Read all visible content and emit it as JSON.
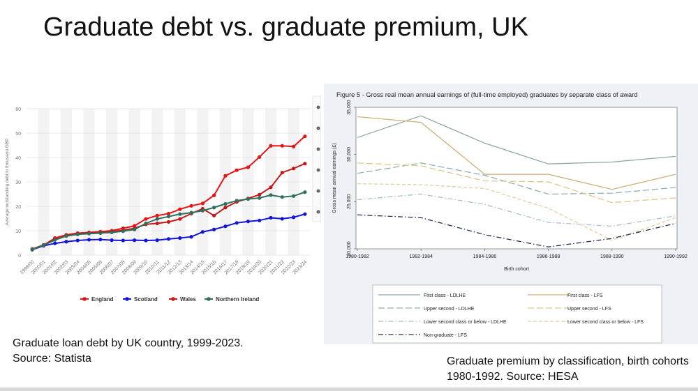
{
  "slide": {
    "title": "Graduate debt vs. graduate premium, UK"
  },
  "captions": {
    "left": "Graduate loan debt by UK country, 1999-2023. Source: Statista",
    "right": "Graduate premium by classification, birth cohorts 1980-1992. Source: HESA"
  },
  "chart_data": [
    {
      "type": "line",
      "title": "",
      "ylabel": "Average outstanding debt in thousand GBP",
      "xlabel": "",
      "ylim": [
        0,
        60
      ],
      "yticks": [
        0,
        10,
        20,
        30,
        40,
        50,
        60
      ],
      "grid": true,
      "legend_position": "bottom",
      "categories": [
        "1999/00",
        "2000/01",
        "2001/02",
        "2002/03",
        "2003/04",
        "2004/05",
        "2005/06",
        "2006/07",
        "2007/08",
        "2008/09",
        "2009/10",
        "2010/11",
        "2011/12",
        "2012/13",
        "2013/14",
        "2014/15",
        "2015/16",
        "2016/17",
        "2017/18",
        "2018/19",
        "2019/20",
        "2020/21",
        "2021/22",
        "2022/23",
        "2023/24"
      ],
      "series": [
        {
          "name": "England",
          "color": "#e81414",
          "values": [
            2.5,
            4.0,
            7.0,
            8.3,
            9.0,
            9.3,
            9.6,
            10.0,
            11.0,
            12.0,
            14.8,
            16.2,
            17.0,
            18.8,
            20.2,
            21.2,
            24.5,
            32.5,
            34.8,
            36.0,
            40.2,
            44.8,
            44.8,
            44.5,
            48.7
          ]
        },
        {
          "name": "Scotland",
          "color": "#1414d8",
          "values": [
            2.2,
            3.8,
            4.8,
            5.5,
            6.0,
            6.3,
            6.4,
            6.1,
            6.0,
            6.1,
            6.0,
            6.1,
            6.6,
            7.0,
            7.5,
            9.5,
            10.5,
            11.8,
            13.2,
            13.8,
            14.2,
            15.3,
            14.9,
            15.5,
            16.8
          ]
        },
        {
          "name": "Wales",
          "color": "#c41a1a",
          "values": [
            2.4,
            4.2,
            6.5,
            8.0,
            8.8,
            9.2,
            9.3,
            9.6,
            10.2,
            11.0,
            12.6,
            13.0,
            13.6,
            14.8,
            17.0,
            19.0,
            16.2,
            19.5,
            21.8,
            23.2,
            24.8,
            27.8,
            33.8,
            35.5,
            37.5
          ]
        },
        {
          "name": "Northern Ireland",
          "color": "#2f6f5f",
          "values": [
            2.3,
            4.0,
            6.2,
            7.8,
            8.5,
            8.8,
            9.0,
            9.3,
            9.8,
            10.5,
            13.0,
            14.8,
            15.8,
            16.8,
            17.4,
            18.2,
            19.5,
            21.0,
            22.3,
            23.0,
            23.4,
            24.6,
            23.8,
            24.2,
            25.8
          ]
        }
      ]
    },
    {
      "type": "line",
      "title": "Figure 5 - Gross real mean annual earnings of (full-time employed) graduates by separate class of award",
      "ylabel": "Gross mean annual earnings (£)",
      "xlabel": "Birth cohort",
      "ylim": [
        20000,
        35000
      ],
      "yticks": [
        "20,000",
        "25,000",
        "30,000",
        "35,000"
      ],
      "grid": false,
      "legend_position": "bottom",
      "categories": [
        "1980-1982",
        "1982-1984",
        "1984-1986",
        "1986-1988",
        "1988-1990",
        "1990-1992"
      ],
      "series": [
        {
          "name": "First class - LDLHE",
          "color": "#8aaaa2",
          "dash": "solid",
          "values": [
            31800,
            34100,
            31200,
            29000,
            29200,
            29800
          ]
        },
        {
          "name": "First class - LFS",
          "color": "#cdb07a",
          "dash": "solid",
          "values": [
            34000,
            33400,
            27900,
            27900,
            26300,
            27900
          ]
        },
        {
          "name": "Upper second - LDLHE",
          "color": "#8fb0b2",
          "dash": "longdash",
          "values": [
            28000,
            29100,
            27800,
            25800,
            25900,
            26500
          ]
        },
        {
          "name": "Upper second - LFS",
          "color": "#e0c68a",
          "dash": "longdash",
          "values": [
            29100,
            28800,
            27200,
            27100,
            24900,
            25400
          ]
        },
        {
          "name": "Lower second class or below - LDLHE",
          "color": "#a9c2c4",
          "dash": "dashdot",
          "values": [
            25200,
            25800,
            24700,
            22800,
            22400,
            23500
          ]
        },
        {
          "name": "Lower second class or below - LFS",
          "color": "#e3cf9a",
          "dash": "dash",
          "values": [
            26900,
            26800,
            26400,
            24300,
            20900,
            23300
          ]
        },
        {
          "name": "Non-graduate - LFS",
          "color": "#1f2f5a",
          "dash": "dashdot",
          "values": [
            23600,
            23300,
            21500,
            20200,
            21100,
            22700
          ]
        }
      ]
    }
  ]
}
